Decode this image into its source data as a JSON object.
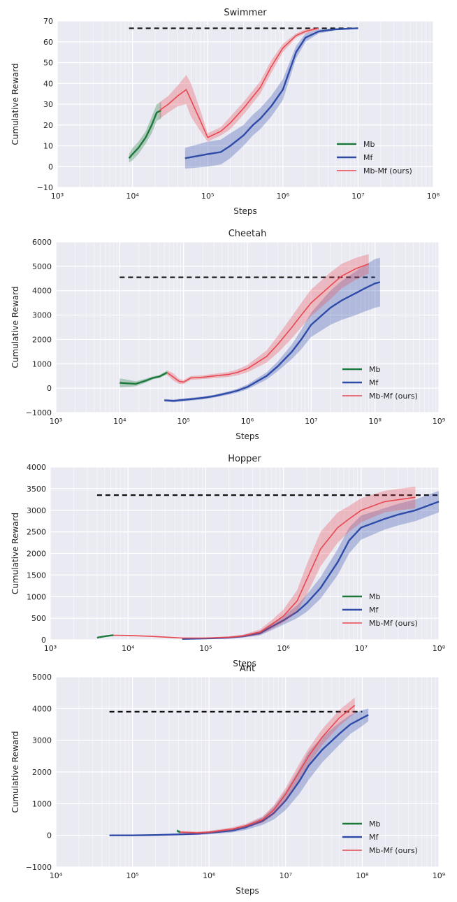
{
  "chart_data": [
    {
      "type": "line",
      "title": "Swimmer",
      "xlabel": "Steps",
      "ylabel": "Cumulative Reward",
      "xscale": "log",
      "xlim": [
        1000,
        100000000
      ],
      "ylim": [
        -10,
        70
      ],
      "yticks": [
        -10,
        0,
        10,
        20,
        30,
        40,
        50,
        60,
        70
      ],
      "xtick_exponents": [
        3,
        4,
        5,
        6,
        7,
        8
      ],
      "reference_line": {
        "y": 66.5,
        "x_range": [
          9000,
          10000000
        ],
        "style": "dashed"
      },
      "legend_position": "lower-right",
      "grid": true,
      "series": [
        {
          "name": "Mb",
          "color": "#1b7a3a",
          "x": [
            9000,
            10000,
            12000,
            15000,
            18000,
            21000,
            24000
          ],
          "y": [
            4,
            6,
            9,
            14,
            20,
            26,
            27
          ],
          "band": [
            2,
            3,
            3,
            3,
            4,
            4,
            4
          ]
        },
        {
          "name": "Mf",
          "color": "#2e4ba8",
          "x": [
            50000,
            100000,
            150000,
            200000,
            300000,
            400000,
            500000,
            700000,
            1000000,
            1500000,
            2000000,
            3000000,
            5000000,
            10000000
          ],
          "y": [
            4,
            6,
            7,
            10,
            15,
            20,
            23,
            29,
            37,
            55,
            62,
            65,
            66,
            66.5
          ],
          "band": [
            5,
            6,
            6,
            6,
            5,
            5,
            5,
            5,
            5,
            3,
            2,
            1,
            0.5,
            0.3
          ]
        },
        {
          "name": "Mb-Mf (ours)",
          "color": "#e8474f",
          "x": [
            23000,
            30000,
            40000,
            52000,
            60000,
            80000,
            100000,
            150000,
            200000,
            300000,
            500000,
            700000,
            1000000,
            1500000,
            2000000,
            3000000
          ],
          "y": [
            27,
            30,
            34,
            37,
            32,
            22,
            14,
            17,
            21,
            28,
            38,
            48,
            57,
            63,
            65,
            66.5
          ],
          "band": [
            4,
            4,
            5,
            7,
            8,
            5,
            2,
            2,
            3,
            3,
            3,
            3,
            2,
            1,
            1,
            0.5
          ]
        }
      ]
    },
    {
      "type": "line",
      "title": "Cheetah",
      "xlabel": "Steps",
      "ylabel": "Cumulative Reward",
      "xscale": "log",
      "xlim": [
        1000,
        1000000000
      ],
      "ylim": [
        -1000,
        6000
      ],
      "yticks": [
        -1000,
        0,
        1000,
        2000,
        3000,
        4000,
        5000,
        6000
      ],
      "xtick_exponents": [
        3,
        4,
        5,
        6,
        7,
        8,
        9
      ],
      "reference_line": {
        "y": 4550,
        "x_range": [
          10000,
          100000000
        ],
        "style": "dashed"
      },
      "legend_position": "lower-right",
      "grid": true,
      "series": [
        {
          "name": "Mb",
          "color": "#1b7a3a",
          "x": [
            10000,
            13000,
            18000,
            25000,
            33000,
            42000,
            55000
          ],
          "y": [
            220,
            200,
            180,
            300,
            420,
            480,
            640
          ],
          "band": [
            180,
            150,
            100,
            80,
            60,
            60,
            80
          ]
        },
        {
          "name": "Mf",
          "color": "#2e4ba8",
          "x": [
            50000,
            70000,
            100000,
            200000,
            300000,
            500000,
            700000,
            1000000,
            2000000,
            3000000,
            5000000,
            7000000,
            10000000,
            20000000,
            30000000,
            50000000,
            70000000,
            100000000,
            120000000
          ],
          "y": [
            -500,
            -520,
            -480,
            -400,
            -330,
            -200,
            -100,
            50,
            500,
            900,
            1500,
            2000,
            2600,
            3300,
            3600,
            3900,
            4100,
            4300,
            4350
          ],
          "band": [
            50,
            60,
            60,
            60,
            60,
            70,
            80,
            100,
            150,
            200,
            300,
            400,
            500,
            700,
            800,
            900,
            950,
            1000,
            1000
          ]
        },
        {
          "name": "Mb-Mf (ours)",
          "color": "#e8474f",
          "x": [
            55000,
            70000,
            85000,
            100000,
            130000,
            200000,
            300000,
            500000,
            700000,
            1000000,
            2000000,
            3000000,
            5000000,
            7000000,
            10000000,
            20000000,
            30000000,
            50000000,
            80000000
          ],
          "y": [
            640,
            450,
            280,
            250,
            420,
            450,
            500,
            560,
            650,
            800,
            1300,
            1800,
            2500,
            3000,
            3500,
            4200,
            4600,
            4900,
            5100
          ],
          "band": [
            100,
            150,
            100,
            80,
            80,
            80,
            90,
            100,
            120,
            150,
            250,
            350,
            450,
            500,
            550,
            550,
            500,
            450,
            400
          ]
        }
      ]
    },
    {
      "type": "line",
      "title": "Hopper",
      "xlabel": "Steps",
      "ylabel": "Cumulative Reward",
      "xscale": "log",
      "xlim": [
        1000,
        100000000
      ],
      "ylim": [
        0,
        4000
      ],
      "yticks": [
        0,
        500,
        1000,
        1500,
        2000,
        2500,
        3000,
        3500,
        4000
      ],
      "xtick_exponents": [
        3,
        4,
        5,
        6,
        7,
        8
      ],
      "reference_line": {
        "y": 3350,
        "x_range": [
          4000,
          100000000
        ],
        "style": "dashed"
      },
      "legend_position": "lower-right",
      "grid": true,
      "series": [
        {
          "name": "Mb",
          "color": "#1b7a3a",
          "x": [
            4000,
            5000,
            6000,
            6500
          ],
          "y": [
            50,
            80,
            100,
            105
          ],
          "band": [
            10,
            10,
            10,
            10
          ]
        },
        {
          "name": "Mf",
          "color": "#2e4ba8",
          "x": [
            50000,
            100000,
            200000,
            300000,
            500000,
            700000,
            1000000,
            1500000,
            2000000,
            3000000,
            5000000,
            7000000,
            10000000,
            20000000,
            30000000,
            50000000,
            100000000
          ],
          "y": [
            20,
            30,
            50,
            80,
            150,
            300,
            450,
            650,
            850,
            1200,
            1800,
            2300,
            2600,
            2800,
            2900,
            3000,
            3200
          ],
          "band": [
            10,
            10,
            20,
            30,
            50,
            80,
            100,
            150,
            200,
            250,
            300,
            300,
            280,
            250,
            250,
            250,
            250
          ]
        },
        {
          "name": "Mb-Mf (ours)",
          "color": "#e8474f",
          "x": [
            6500,
            10000,
            20000,
            50000,
            100000,
            200000,
            300000,
            500000,
            700000,
            1000000,
            1500000,
            2000000,
            3000000,
            5000000,
            7000000,
            10000000,
            20000000,
            50000000
          ],
          "y": [
            105,
            100,
            80,
            40,
            40,
            60,
            90,
            180,
            350,
            550,
            900,
            1400,
            2100,
            2600,
            2800,
            3000,
            3200,
            3300
          ],
          "band": [
            10,
            10,
            10,
            10,
            10,
            20,
            30,
            60,
            100,
            150,
            250,
            350,
            400,
            350,
            300,
            280,
            250,
            250
          ]
        }
      ]
    },
    {
      "type": "line",
      "title": "Ant",
      "xlabel": "Steps",
      "ylabel": "Cumulative Reward",
      "xscale": "log",
      "xlim": [
        10000,
        1000000000
      ],
      "ylim": [
        -1000,
        5000
      ],
      "yticks": [
        -1000,
        0,
        1000,
        2000,
        3000,
        4000,
        5000
      ],
      "xtick_exponents": [
        4,
        5,
        6,
        7,
        8,
        9
      ],
      "reference_line": {
        "y": 3900,
        "x_range": [
          50000,
          100000000
        ],
        "style": "dashed"
      },
      "legend_position": "lower-right",
      "grid": true,
      "series": [
        {
          "name": "Mb",
          "color": "#1b7a3a",
          "x": [
            380000,
            400000,
            420000
          ],
          "y": [
            150,
            120,
            100
          ],
          "band": [
            50,
            50,
            50
          ]
        },
        {
          "name": "Mf",
          "color": "#2e4ba8",
          "x": [
            50000,
            100000,
            200000,
            400000,
            700000,
            1000000,
            2000000,
            3000000,
            5000000,
            7000000,
            10000000,
            15000000,
            20000000,
            30000000,
            50000000,
            70000000,
            100000000,
            120000000
          ],
          "y": [
            0,
            0,
            10,
            30,
            50,
            80,
            150,
            250,
            450,
            700,
            1100,
            1700,
            2200,
            2700,
            3200,
            3500,
            3700,
            3800
          ],
          "band": [
            10,
            10,
            20,
            30,
            40,
            50,
            60,
            80,
            120,
            200,
            300,
            400,
            450,
            400,
            350,
            300,
            250,
            200
          ]
        },
        {
          "name": "Mb-Mf (ours)",
          "color": "#e8474f",
          "x": [
            420000,
            700000,
            1000000,
            2000000,
            3000000,
            5000000,
            7000000,
            10000000,
            15000000,
            20000000,
            30000000,
            50000000,
            80000000
          ],
          "y": [
            100,
            80,
            100,
            200,
            300,
            500,
            800,
            1300,
            2000,
            2500,
            3100,
            3700,
            4100
          ],
          "band": [
            40,
            40,
            40,
            50,
            60,
            100,
            150,
            200,
            250,
            250,
            250,
            250,
            250
          ]
        }
      ]
    }
  ]
}
